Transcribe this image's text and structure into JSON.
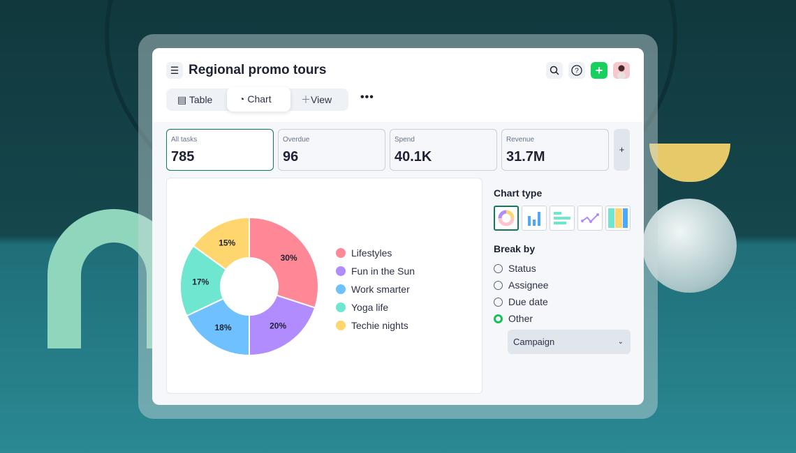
{
  "header": {
    "title": "Regional promo tours",
    "actions": [
      "search-icon",
      "help-icon",
      "add-icon",
      "avatar"
    ]
  },
  "tabs": [
    {
      "label": "Table",
      "icon": "table-icon"
    },
    {
      "label": "Chart",
      "icon": "pie-chart-icon",
      "active": true
    },
    {
      "label": "View",
      "icon": "plus-icon"
    }
  ],
  "more_label": "•••",
  "stats": [
    {
      "label": "All tasks",
      "value": "785",
      "selected": true
    },
    {
      "label": "Overdue",
      "value": "96"
    },
    {
      "label": "Spend",
      "value": "40.1K"
    },
    {
      "label": "Revenue",
      "value": "31.7M"
    }
  ],
  "add_stat_label": "+",
  "chart_data": {
    "type": "pie",
    "donut": true,
    "categories": [
      "Lifestyles",
      "Fun in the Sun",
      "Work smarter",
      "Yoga life",
      "Techie nights"
    ],
    "values": [
      30,
      20,
      18,
      17,
      15
    ],
    "labels": [
      "30%",
      "20%",
      "18%",
      "17%",
      "15%"
    ],
    "colors": [
      "#ff8896",
      "#b18cff",
      "#6ec0ff",
      "#6fe6d0",
      "#ffd66e"
    ],
    "legend": "right"
  },
  "side": {
    "chart_type_label": "Chart type",
    "chart_types": [
      "donut",
      "bar",
      "horizontal-bar",
      "line",
      "stacked"
    ],
    "selected_type": "donut",
    "break_by_label": "Break by",
    "options": [
      "Status",
      "Assignee",
      "Due date",
      "Other"
    ],
    "selected_option": "Other",
    "dropdown_value": "Campaign"
  },
  "colors": {
    "accent": "#0f7a5a",
    "add": "#17d15e",
    "radio_on": "#1bbf5a"
  }
}
